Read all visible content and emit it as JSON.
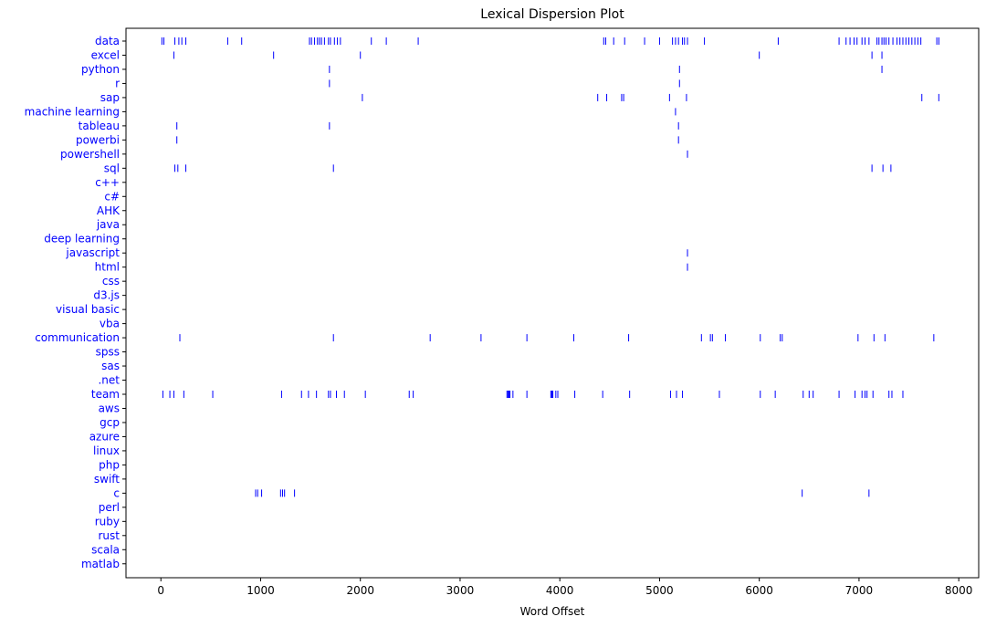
{
  "chart_data": {
    "type": "scatter",
    "title": "Lexical Dispersion Plot",
    "xlabel": "Word Offset",
    "ylabel": "",
    "xlim": [
      -350,
      8200
    ],
    "xticks": [
      0,
      1000,
      2000,
      3000,
      4000,
      5000,
      6000,
      7000,
      8000
    ],
    "marker_color": "#0000ff",
    "label_color": "#0000ff",
    "words": [
      {
        "word": "data",
        "offsets": [
          10,
          30,
          140,
          180,
          210,
          250,
          670,
          810,
          1490,
          1510,
          1540,
          1570,
          1590,
          1610,
          1640,
          1680,
          1700,
          1740,
          1770,
          1800,
          2110,
          2260,
          2580,
          4440,
          4460,
          4540,
          4650,
          4850,
          5000,
          5130,
          5160,
          5190,
          5230,
          5250,
          5280,
          5450,
          6190,
          6800,
          6870,
          6910,
          6950,
          6980,
          7030,
          7060,
          7100,
          7180,
          7200,
          7230,
          7250,
          7270,
          7300,
          7340,
          7380,
          7410,
          7440,
          7470,
          7500,
          7530,
          7560,
          7590,
          7620,
          7780,
          7800
        ]
      },
      {
        "word": "excel",
        "offsets": [
          130,
          1130,
          2000,
          6000,
          7130,
          7230
        ]
      },
      {
        "word": "python",
        "offsets": [
          1690,
          5200,
          7230
        ]
      },
      {
        "word": "r",
        "offsets": [
          1690,
          5200
        ]
      },
      {
        "word": "sap",
        "offsets": [
          2020,
          4380,
          4470,
          4620,
          4640,
          5100,
          5270,
          7630,
          7800
        ]
      },
      {
        "word": "machine learning",
        "offsets": [
          5160
        ]
      },
      {
        "word": "tableau",
        "offsets": [
          160,
          1690,
          5190
        ]
      },
      {
        "word": "powerbi",
        "offsets": [
          160,
          5190
        ]
      },
      {
        "word": "powershell",
        "offsets": [
          5280
        ]
      },
      {
        "word": "sql",
        "offsets": [
          140,
          170,
          250,
          1730,
          7130,
          7240,
          7320
        ]
      },
      {
        "word": "c++",
        "offsets": []
      },
      {
        "word": "c#",
        "offsets": []
      },
      {
        "word": "AHK",
        "offsets": []
      },
      {
        "word": "java",
        "offsets": []
      },
      {
        "word": "deep learning",
        "offsets": []
      },
      {
        "word": "javascript",
        "offsets": [
          5280
        ]
      },
      {
        "word": "html",
        "offsets": [
          5280
        ]
      },
      {
        "word": "css",
        "offsets": []
      },
      {
        "word": "d3.js",
        "offsets": []
      },
      {
        "word": "visual basic",
        "offsets": []
      },
      {
        "word": "vba",
        "offsets": []
      },
      {
        "word": "communication",
        "offsets": [
          190,
          1730,
          2700,
          3210,
          3670,
          4140,
          4690,
          5420,
          5510,
          5530,
          5660,
          6010,
          6210,
          6230,
          6990,
          7150,
          7260,
          7750
        ]
      },
      {
        "word": "spss",
        "offsets": []
      },
      {
        "word": "sas",
        "offsets": []
      },
      {
        "word": ".net",
        "offsets": []
      },
      {
        "word": "team",
        "offsets": [
          20,
          90,
          130,
          230,
          520,
          1210,
          1410,
          1480,
          1560,
          1680,
          1700,
          1760,
          1840,
          2050,
          2490,
          2530,
          3470,
          3480,
          3490,
          3500,
          3530,
          3670,
          3910,
          3920,
          3930,
          3960,
          3980,
          4150,
          4430,
          4700,
          5110,
          5170,
          5230,
          5600,
          6010,
          6160,
          6440,
          6500,
          6540,
          6800,
          6960,
          7030,
          7060,
          7080,
          7140,
          7300,
          7330,
          7440
        ]
      },
      {
        "word": "aws",
        "offsets": []
      },
      {
        "word": "gcp",
        "offsets": []
      },
      {
        "word": "azure",
        "offsets": []
      },
      {
        "word": "linux",
        "offsets": []
      },
      {
        "word": "php",
        "offsets": []
      },
      {
        "word": "swift",
        "offsets": []
      },
      {
        "word": "c",
        "offsets": [
          950,
          970,
          1010,
          1200,
          1220,
          1240,
          1340,
          6430,
          7100
        ]
      },
      {
        "word": "perl",
        "offsets": []
      },
      {
        "word": "ruby",
        "offsets": []
      },
      {
        "word": "rust",
        "offsets": []
      },
      {
        "word": "scala",
        "offsets": []
      },
      {
        "word": "matlab",
        "offsets": []
      }
    ]
  }
}
